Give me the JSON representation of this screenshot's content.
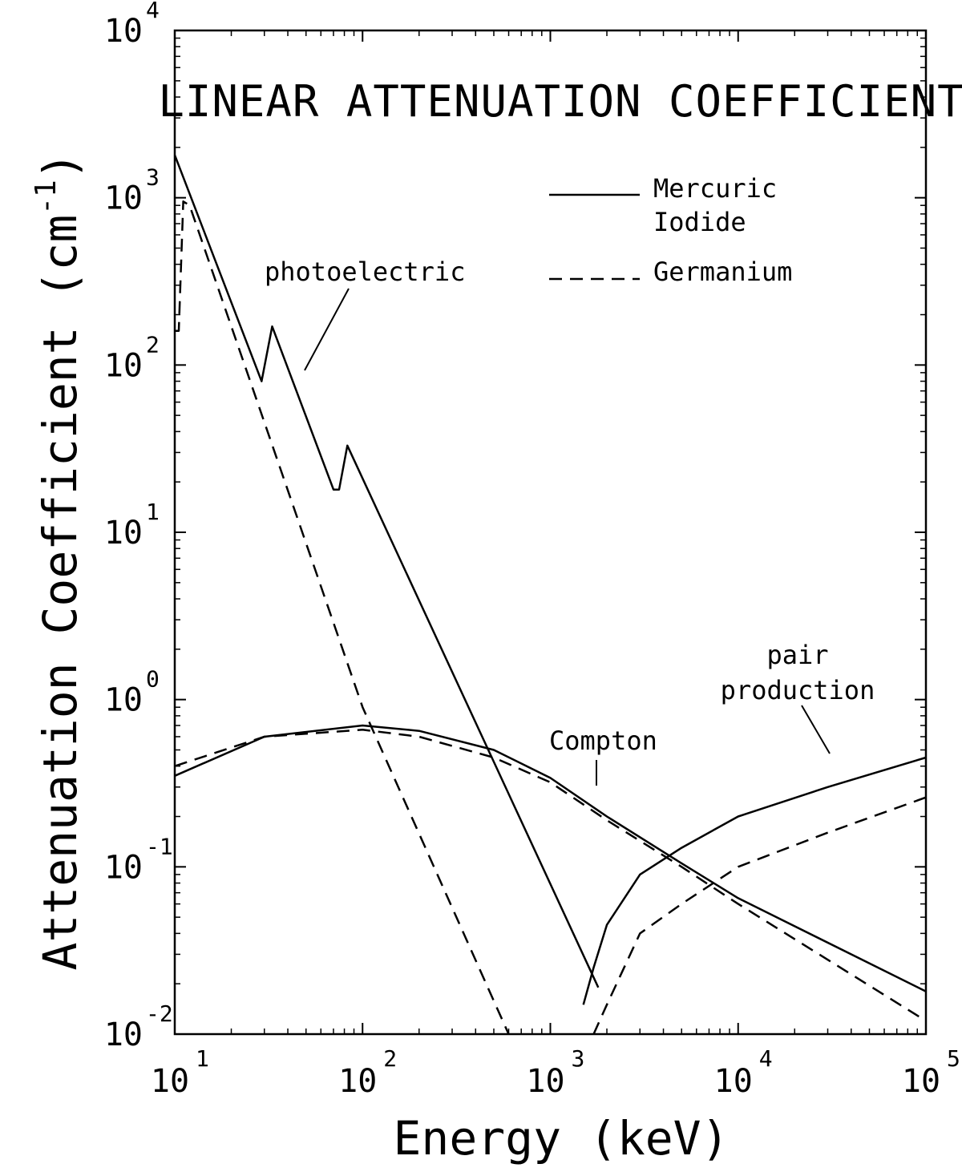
{
  "chart_data": {
    "type": "line",
    "title": "LINEAR ATTENUATION COEFFICIENT",
    "xlabel": "Energy (keV)",
    "ylabel": "Attenuation Coefficient (cm",
    "ylabel_sup": "-1",
    "ylabel_close": ")",
    "x_scale": "log",
    "y_scale": "log",
    "xlim": [
      10,
      100000
    ],
    "ylim": [
      0.01,
      10000
    ],
    "grid": false,
    "legend_position": "top-right",
    "x_ticks": [
      {
        "value": 10,
        "base": "10",
        "exp": "1"
      },
      {
        "value": 100,
        "base": "10",
        "exp": "2"
      },
      {
        "value": 1000,
        "base": "10",
        "exp": "3"
      },
      {
        "value": 10000,
        "base": "10",
        "exp": "4"
      },
      {
        "value": 100000,
        "base": "10",
        "exp": "5"
      }
    ],
    "y_ticks": [
      {
        "value": 0.01,
        "base": "10",
        "exp": "-2"
      },
      {
        "value": 0.1,
        "base": "10",
        "exp": "-1"
      },
      {
        "value": 1,
        "base": "10",
        "exp": "0"
      },
      {
        "value": 10,
        "base": "10",
        "exp": "1"
      },
      {
        "value": 100,
        "base": "10",
        "exp": "2"
      },
      {
        "value": 1000,
        "base": "10",
        "exp": "3"
      },
      {
        "value": 10000,
        "base": "10",
        "exp": "4"
      }
    ],
    "legend": [
      {
        "label_lines": [
          "Mercuric",
          "Iodide"
        ],
        "style": "solid"
      },
      {
        "label_lines": [
          "Germanium"
        ],
        "style": "dashed"
      }
    ],
    "annotations": [
      {
        "lines": [
          "photoelectric"
        ]
      },
      {
        "lines": [
          "Compton"
        ]
      },
      {
        "lines": [
          "pair",
          "production"
        ]
      }
    ],
    "series": [
      {
        "name": "Mercuric Iodide",
        "component": "photoelectric",
        "style": "solid",
        "x": [
          10,
          29,
          29,
          33,
          70,
          75,
          75,
          83,
          1800
        ],
        "y": [
          1800,
          80,
          80,
          170,
          18,
          18,
          18,
          33,
          0.019
        ]
      },
      {
        "name": "Germanium",
        "component": "photoelectric",
        "style": "dashed",
        "x": [
          10,
          10.5,
          11.1,
          11.1,
          12,
          100,
          600
        ],
        "y": [
          160,
          160,
          950,
          950,
          900,
          0.9,
          0.01
        ]
      },
      {
        "name": "Mercuric Iodide",
        "component": "Compton",
        "style": "solid",
        "x": [
          10,
          30,
          100,
          200,
          500,
          1000,
          2000,
          5000,
          10000,
          100000
        ],
        "y": [
          0.35,
          0.6,
          0.7,
          0.65,
          0.5,
          0.34,
          0.2,
          0.105,
          0.065,
          0.018
        ]
      },
      {
        "name": "Germanium",
        "component": "Compton",
        "style": "dashed",
        "x": [
          10,
          30,
          100,
          200,
          500,
          1000,
          2000,
          5000,
          10000,
          100000
        ],
        "y": [
          0.4,
          0.6,
          0.66,
          0.6,
          0.45,
          0.32,
          0.19,
          0.1,
          0.06,
          0.012
        ]
      },
      {
        "name": "Mercuric Iodide",
        "component": "pair production",
        "style": "solid",
        "x": [
          1500,
          1700,
          2000,
          3000,
          5000,
          10000,
          30000,
          100000
        ],
        "y": [
          0.015,
          0.025,
          0.045,
          0.09,
          0.13,
          0.2,
          0.3,
          0.45
        ]
      },
      {
        "name": "Germanium",
        "component": "pair production",
        "style": "dashed",
        "x": [
          1700,
          2000,
          3000,
          5000,
          10000,
          30000,
          100000
        ],
        "y": [
          0.01,
          0.015,
          0.04,
          0.06,
          0.1,
          0.16,
          0.26
        ]
      }
    ]
  }
}
